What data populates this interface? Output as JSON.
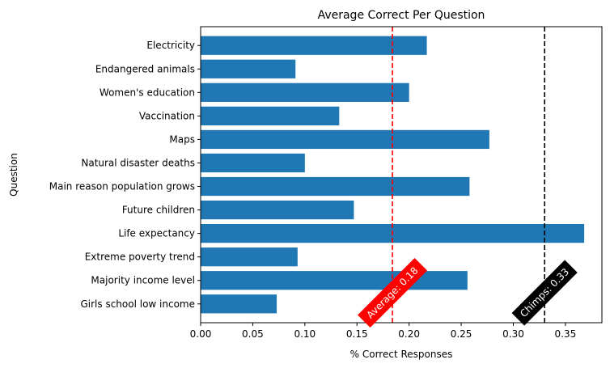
{
  "chart_data": {
    "type": "bar",
    "orientation": "horizontal",
    "title": "Average Correct Per Question",
    "xlabel": "% Correct Responses",
    "ylabel": "Question",
    "xlim": [
      0,
      0.385
    ],
    "xticks": [
      0.0,
      0.05,
      0.1,
      0.15,
      0.2,
      0.25,
      0.3,
      0.35
    ],
    "xtick_labels": [
      "0.00",
      "0.05",
      "0.10",
      "0.15",
      "0.20",
      "0.25",
      "0.30",
      "0.35"
    ],
    "grid": false,
    "bar_color": "#1f77b4",
    "categories": [
      "Electricity",
      "Endangered animals",
      "Women's education",
      "Vaccination",
      "Maps",
      "Natural disaster deaths",
      "Main reason population grows",
      "Future children",
      "Life expectancy",
      "Extreme poverty trend",
      "Majority income level",
      "Girls school low income"
    ],
    "values": [
      0.217,
      0.091,
      0.2,
      0.133,
      0.277,
      0.1,
      0.258,
      0.147,
      0.368,
      0.093,
      0.256,
      0.073
    ],
    "reference_lines": [
      {
        "label": "Average: 0.18",
        "value": 0.184,
        "color": "#ff0000",
        "style": "dashed"
      },
      {
        "label": "Chimps: 0.33",
        "value": 0.33,
        "color": "#000000",
        "style": "dashed"
      }
    ]
  }
}
